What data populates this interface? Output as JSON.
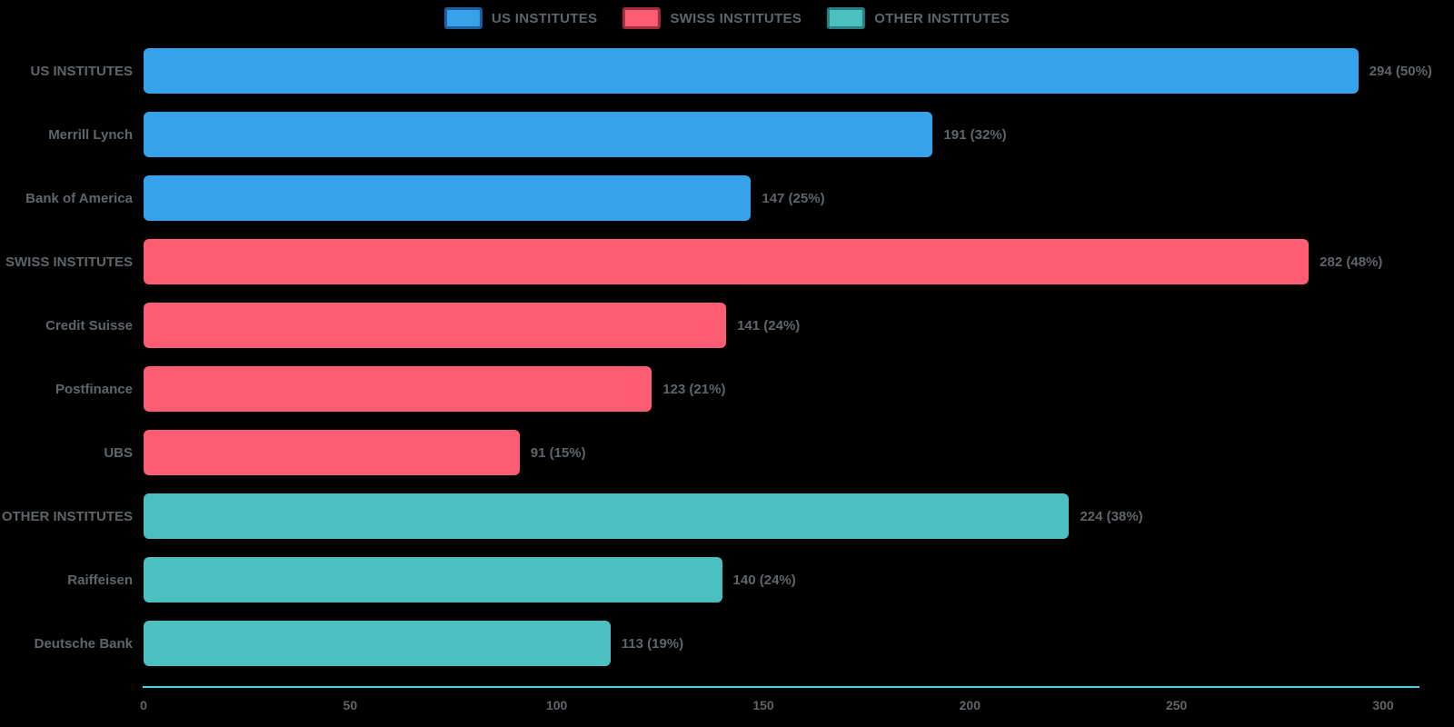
{
  "page": {
    "background": "#000000",
    "text_color": "#60656a"
  },
  "legend": {
    "items": [
      {
        "label": "US INSTITUTES",
        "color": "#36A2EB",
        "border": "#1f5d9b"
      },
      {
        "label": "SWISS INSTITUTES",
        "color": "#FC5D73",
        "border": "#9e2f41"
      },
      {
        "label": "OTHER INSTITUTES",
        "color": "#4BC0C0",
        "border": "#27807f"
      }
    ]
  },
  "chart_data": {
    "type": "bar",
    "orientation": "horizontal",
    "title": "",
    "xlabel": "",
    "ylabel": "",
    "xlim": [
      0,
      300
    ],
    "x_ticks": [
      0,
      50,
      100,
      150,
      200,
      250,
      300
    ],
    "grid": false,
    "legend_position": "top-center",
    "axis_line_color": "#2fe1e2",
    "series_colors": {
      "us": "#36A2EB",
      "swiss": "#FC5D73",
      "other": "#4BC0C0"
    },
    "bars": [
      {
        "category": "US INSTITUTES",
        "value": 294,
        "annotation": "294 (50%)",
        "group": "us"
      },
      {
        "category": "Merrill Lynch",
        "value": 191,
        "annotation": "191 (32%)",
        "group": "us"
      },
      {
        "category": "Bank of America",
        "value": 147,
        "annotation": "147 (25%)",
        "group": "us"
      },
      {
        "category": "SWISS INSTITUTES",
        "value": 282,
        "annotation": "282 (48%)",
        "group": "swiss"
      },
      {
        "category": "Credit Suisse",
        "value": 141,
        "annotation": "141 (24%)",
        "group": "swiss"
      },
      {
        "category": "Postfinance",
        "value": 123,
        "annotation": "123 (21%)",
        "group": "swiss"
      },
      {
        "category": "UBS",
        "value": 91,
        "annotation": "91 (15%)",
        "group": "swiss"
      },
      {
        "category": "OTHER INSTITUTES",
        "value": 224,
        "annotation": "224 (38%)",
        "group": "other"
      },
      {
        "category": "Raiffeisen",
        "value": 140,
        "annotation": "140 (24%)",
        "group": "other"
      },
      {
        "category": "Deutsche Bank",
        "value": 113,
        "annotation": "113 (19%)",
        "group": "other"
      }
    ]
  }
}
